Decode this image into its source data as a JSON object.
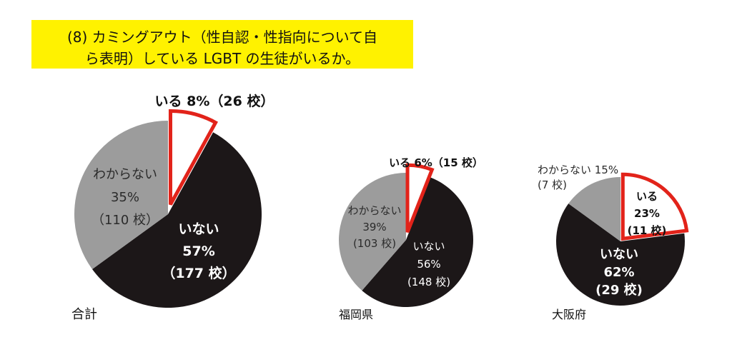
{
  "header": {
    "line1": "(8) カミングアウト（性自認・性指向について自",
    "line2": "ら表明）している LGBT の生徒がいるか。"
  },
  "colors": {
    "yes": "#ffffff",
    "yes_outline": "#e2231a",
    "no": "#1c1718",
    "unknown": "#9c9c9c"
  },
  "chart_data": [
    {
      "type": "pie",
      "caption": "合計",
      "slices": [
        {
          "name": "いる",
          "value": 8,
          "count": "26 校",
          "label_line1": "いる 8%（26 校）"
        },
        {
          "name": "いない",
          "value": 57,
          "count": "177 校",
          "label_line1": "いない",
          "label_line2": "57%",
          "label_line3": "（177 校）"
        },
        {
          "name": "わからない",
          "value": 35,
          "count": "110 校",
          "label_line1": "わからない",
          "label_line2": "35%",
          "label_line3": "（110 校）"
        }
      ]
    },
    {
      "type": "pie",
      "caption": "福岡県",
      "slices": [
        {
          "name": "いる",
          "value": 6,
          "count": "15 校",
          "label_line1": "いる 6%（15 校）"
        },
        {
          "name": "いない",
          "value": 56,
          "count": "148 校",
          "label_line1": "いない",
          "label_line2": "56%",
          "label_line3": "(148 校)"
        },
        {
          "name": "わからない",
          "value": 39,
          "count": "103 校",
          "label_line1": "わからない",
          "label_line2": "39%",
          "label_line3": "(103 校)"
        }
      ]
    },
    {
      "type": "pie",
      "caption": "大阪府",
      "slices": [
        {
          "name": "いる",
          "value": 23,
          "count": "11 校",
          "label_line1": "いる",
          "label_line2": "23%",
          "label_line3": "(11 校)"
        },
        {
          "name": "いない",
          "value": 62,
          "count": "29 校",
          "label_line1": "いない",
          "label_line2": "62%",
          "label_line3": "(29 校)"
        },
        {
          "name": "わからない",
          "value": 15,
          "count": "7 校",
          "label_line1": "わからない 15%",
          "label_line2": "(7 校)"
        }
      ]
    }
  ]
}
